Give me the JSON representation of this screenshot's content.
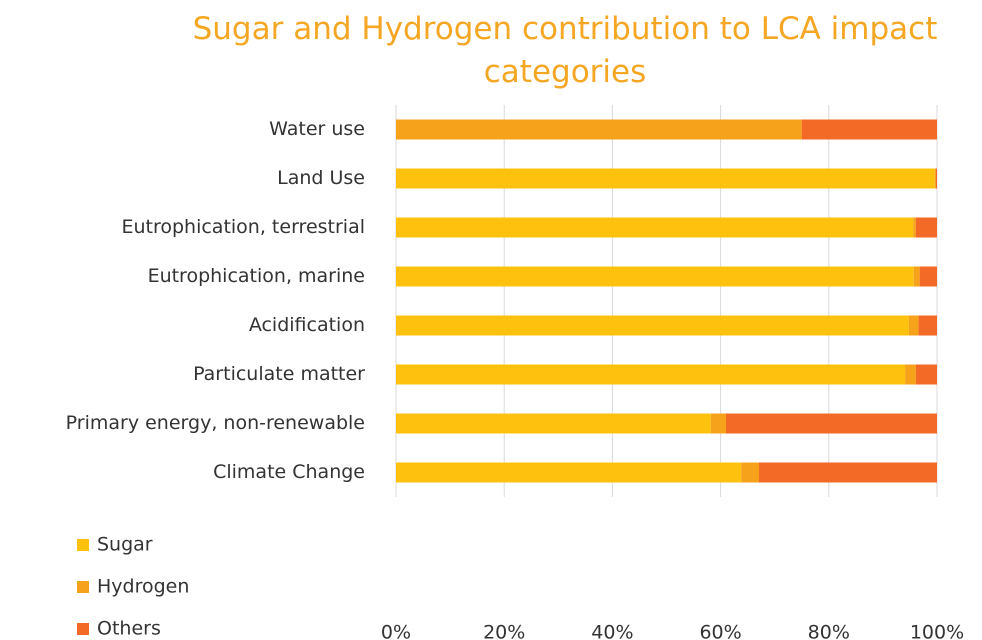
{
  "chart_data": {
    "type": "stacked_barh",
    "title": "Sugar and Hydrogen contribution to LCA impact categories",
    "categories": [
      "Water use",
      "Land Use",
      "Eutrophication, terrestrial",
      "Eutrophication, marine",
      "Acidification",
      "Particulate matter",
      "Primary energy, non-renewable",
      "Climate Change"
    ],
    "series": [
      {
        "name": "Sugar",
        "color": "#fdc10e",
        "values": [
          0,
          99.6,
          95.6,
          95.7,
          94.8,
          94.1,
          58.2,
          63.8
        ]
      },
      {
        "name": "Hydrogen",
        "color": "#f7a21b",
        "values": [
          75,
          0.2,
          0.5,
          1.1,
          1.8,
          2,
          2.8,
          3.3
        ]
      },
      {
        "name": "Others",
        "color": "#f26a25",
        "values": [
          25,
          0.2,
          3.9,
          3.2,
          3.4,
          3.9,
          39,
          32.9
        ]
      }
    ],
    "xlim": [
      0,
      100
    ],
    "xticks": [
      {
        "value": 0,
        "label": "0%"
      },
      {
        "value": 20,
        "label": "20%"
      },
      {
        "value": 40,
        "label": "40%"
      },
      {
        "value": 60,
        "label": "60%"
      },
      {
        "value": 80,
        "label": "80%"
      },
      {
        "value": 100,
        "label": "100%"
      }
    ],
    "grid": true,
    "legend": "bottom-left"
  }
}
